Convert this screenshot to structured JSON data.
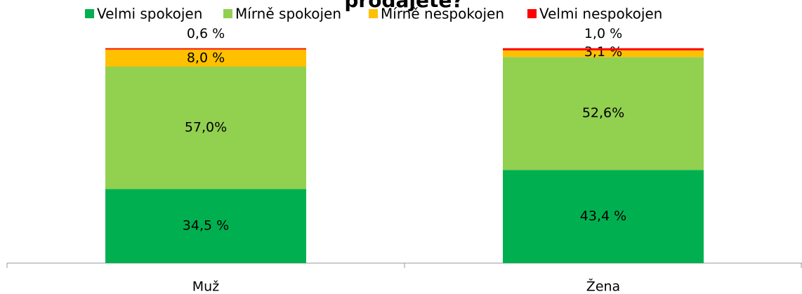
{
  "chart_data": {
    "type": "stacked_bar",
    "title": "prodajete?",
    "categories": [
      "Muž",
      "Žena"
    ],
    "series": [
      {
        "name": "Velmi spokojen",
        "color": "#00b050",
        "values": [
          34.5,
          43.4
        ],
        "value_labels": [
          "34,5 %",
          "43,4 %"
        ]
      },
      {
        "name": "Mírně spokojen",
        "color": "#92d050",
        "values": [
          57.0,
          52.6
        ],
        "value_labels": [
          "57,0%",
          "52,6%"
        ]
      },
      {
        "name": "Mírně nespokojen",
        "color": "#ffc000",
        "values": [
          8.0,
          3.1
        ],
        "value_labels": [
          "8,0 %",
          "3,1 %"
        ]
      },
      {
        "name": "Velmi nespokojen",
        "color": "#ff0000",
        "values": [
          0.6,
          1.0
        ],
        "value_labels": [
          "0,6 %",
          "1,0 %"
        ]
      }
    ],
    "ylim": [
      0,
      100
    ],
    "legend": "top"
  }
}
